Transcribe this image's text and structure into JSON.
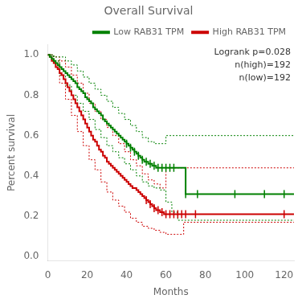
{
  "chart_data": {
    "type": "step",
    "title": "Overall Survival",
    "xlabel": "Months",
    "ylabel": "Percent survival",
    "xlim": [
      0,
      125
    ],
    "ylim": [
      -0.02,
      1.05
    ],
    "xticks": [
      0,
      20,
      40,
      60,
      80,
      100,
      120
    ],
    "yticks": [
      {
        "value": 0.0,
        "label": "0.0"
      },
      0.2,
      0.4,
      0.6,
      0.8,
      {
        "value": 1.0,
        "label": "1.0"
      }
    ],
    "grid": false,
    "legend": "upper right",
    "annotations": [
      "Logrank p=0.028",
      "n(high)=192",
      "n(low)=192"
    ],
    "series": [
      {
        "name": "Low RAB31 TPM",
        "color": "#008000",
        "x": [
          0,
          1,
          2,
          3,
          4,
          5,
          6,
          7,
          8,
          9,
          10,
          11,
          12,
          13,
          14,
          15,
          16,
          17,
          18,
          19,
          20,
          21,
          22,
          23,
          24,
          25,
          26,
          27,
          28,
          29,
          30,
          31,
          32,
          33,
          34,
          35,
          36,
          37,
          38,
          39,
          40,
          41,
          42,
          43,
          44,
          45,
          46,
          47,
          48,
          49,
          50,
          51,
          52,
          53,
          54,
          55,
          56,
          57,
          58,
          59,
          60,
          61,
          62,
          63,
          64,
          65,
          66,
          67,
          68,
          69,
          70,
          71,
          72,
          73,
          74,
          75,
          76,
          77,
          78,
          79,
          80,
          95,
          110,
          120,
          125
        ],
        "values": [
          1.0,
          0.99,
          0.98,
          0.97,
          0.96,
          0.95,
          0.94,
          0.93,
          0.92,
          0.91,
          0.9,
          0.89,
          0.88,
          0.87,
          0.86,
          0.84,
          0.83,
          0.82,
          0.81,
          0.79,
          0.78,
          0.77,
          0.76,
          0.74,
          0.73,
          0.72,
          0.71,
          0.7,
          0.68,
          0.67,
          0.66,
          0.65,
          0.64,
          0.63,
          0.62,
          0.61,
          0.6,
          0.59,
          0.58,
          0.57,
          0.56,
          0.55,
          0.54,
          0.53,
          0.52,
          0.51,
          0.5,
          0.49,
          0.48,
          0.47,
          0.47,
          0.46,
          0.46,
          0.45,
          0.45,
          0.44,
          0.44,
          0.44,
          0.44,
          0.44,
          0.44,
          0.44,
          0.44,
          0.44,
          0.44,
          0.44,
          0.44,
          0.44,
          0.44,
          0.44,
          0.31,
          0.31,
          0.31,
          0.31,
          0.31,
          0.31,
          0.31,
          0.31,
          0.31,
          0.31,
          0.31,
          0.31,
          0.31,
          0.31,
          0.31
        ]
      },
      {
        "name": "High RAB31 TPM",
        "color": "#CC0000",
        "x": [
          0,
          1,
          2,
          3,
          4,
          5,
          6,
          7,
          8,
          9,
          10,
          11,
          12,
          13,
          14,
          15,
          16,
          17,
          18,
          19,
          20,
          21,
          22,
          23,
          24,
          25,
          26,
          27,
          28,
          29,
          30,
          31,
          32,
          33,
          34,
          35,
          36,
          37,
          38,
          39,
          40,
          41,
          42,
          43,
          44,
          45,
          46,
          47,
          48,
          49,
          50,
          51,
          52,
          53,
          54,
          55,
          56,
          57,
          58,
          59,
          60,
          61,
          62,
          63,
          64,
          65,
          66,
          67,
          68,
          69,
          70,
          71,
          72,
          73,
          74,
          75,
          120,
          125
        ],
        "values": [
          1.0,
          0.99,
          0.97,
          0.96,
          0.94,
          0.93,
          0.91,
          0.9,
          0.88,
          0.86,
          0.84,
          0.82,
          0.8,
          0.78,
          0.76,
          0.74,
          0.72,
          0.7,
          0.68,
          0.66,
          0.64,
          0.62,
          0.6,
          0.58,
          0.57,
          0.55,
          0.53,
          0.52,
          0.5,
          0.49,
          0.47,
          0.46,
          0.45,
          0.44,
          0.43,
          0.42,
          0.41,
          0.4,
          0.39,
          0.38,
          0.37,
          0.36,
          0.35,
          0.34,
          0.34,
          0.33,
          0.32,
          0.31,
          0.3,
          0.29,
          0.28,
          0.27,
          0.26,
          0.25,
          0.24,
          0.23,
          0.23,
          0.22,
          0.22,
          0.21,
          0.21,
          0.21,
          0.21,
          0.21,
          0.21,
          0.21,
          0.21,
          0.21,
          0.21,
          0.21,
          0.21,
          0.21,
          0.21,
          0.21,
          0.21,
          0.21,
          0.21,
          0.21
        ]
      },
      {
        "color": "#008000",
        "line_style": "dotted",
        "x": [
          0,
          3,
          6,
          9,
          12,
          15,
          18,
          21,
          24,
          27,
          30,
          33,
          36,
          39,
          42,
          45,
          48,
          51,
          54,
          57,
          60,
          63,
          66,
          69,
          70,
          120,
          125
        ],
        "values": [
          1.0,
          0.99,
          0.99,
          0.97,
          0.95,
          0.92,
          0.89,
          0.86,
          0.83,
          0.8,
          0.77,
          0.74,
          0.71,
          0.68,
          0.65,
          0.62,
          0.59,
          0.57,
          0.56,
          0.56,
          0.6,
          0.6,
          0.6,
          0.6,
          0.6,
          0.6,
          0.6
        ]
      },
      {
        "color": "#008000",
        "line_style": "dotted",
        "x": [
          0,
          3,
          6,
          9,
          12,
          15,
          18,
          21,
          24,
          27,
          30,
          33,
          36,
          39,
          42,
          45,
          48,
          51,
          54,
          57,
          60,
          63,
          66,
          69,
          70,
          120,
          125
        ],
        "values": [
          1.0,
          0.97,
          0.9,
          0.85,
          0.8,
          0.76,
          0.72,
          0.68,
          0.63,
          0.59,
          0.55,
          0.52,
          0.49,
          0.46,
          0.43,
          0.4,
          0.37,
          0.35,
          0.34,
          0.33,
          0.27,
          0.22,
          0.18,
          0.18,
          0.18,
          0.18,
          0.18
        ]
      },
      {
        "color": "#CC0000",
        "line_style": "dotted",
        "x": [
          0,
          3,
          6,
          9,
          12,
          15,
          18,
          21,
          24,
          27,
          30,
          33,
          36,
          39,
          42,
          45,
          48,
          51,
          54,
          57,
          60,
          63,
          66,
          69,
          70,
          120,
          125
        ],
        "values": [
          1.0,
          0.99,
          0.97,
          0.94,
          0.9,
          0.86,
          0.81,
          0.76,
          0.72,
          0.68,
          0.64,
          0.6,
          0.56,
          0.52,
          0.48,
          0.45,
          0.41,
          0.38,
          0.36,
          0.34,
          0.44,
          0.44,
          0.44,
          0.44,
          0.44,
          0.44,
          0.44
        ]
      },
      {
        "color": "#CC0000",
        "line_style": "dotted",
        "x": [
          0,
          3,
          6,
          9,
          12,
          15,
          18,
          21,
          24,
          27,
          30,
          33,
          36,
          39,
          42,
          45,
          48,
          51,
          54,
          57,
          60,
          63,
          66,
          69,
          70,
          120,
          125
        ],
        "values": [
          1.0,
          0.97,
          0.86,
          0.78,
          0.7,
          0.62,
          0.55,
          0.48,
          0.43,
          0.37,
          0.32,
          0.28,
          0.25,
          0.22,
          0.19,
          0.17,
          0.15,
          0.14,
          0.13,
          0.12,
          0.11,
          0.11,
          0.11,
          0.17,
          0.17,
          0.17,
          0.17
        ]
      },
      {
        "type": "scatter",
        "marker": "|",
        "color": "#008000",
        "x": [
          40,
          42,
          44,
          46,
          48,
          50,
          52,
          54,
          56,
          58,
          60,
          62,
          64,
          70,
          76,
          95,
          110,
          120
        ],
        "values": [
          0.56,
          0.54,
          0.52,
          0.5,
          0.48,
          0.47,
          0.46,
          0.45,
          0.44,
          0.44,
          0.44,
          0.44,
          0.44,
          0.31,
          0.31,
          0.31,
          0.31,
          0.31
        ]
      },
      {
        "type": "scatter",
        "marker": "|",
        "color": "#CC0000",
        "x": [
          50,
          52,
          54,
          56,
          58,
          60,
          62,
          64,
          66,
          68,
          70,
          75,
          120
        ],
        "values": [
          0.28,
          0.26,
          0.24,
          0.23,
          0.22,
          0.21,
          0.21,
          0.21,
          0.21,
          0.21,
          0.21,
          0.21,
          0.21
        ]
      }
    ]
  }
}
